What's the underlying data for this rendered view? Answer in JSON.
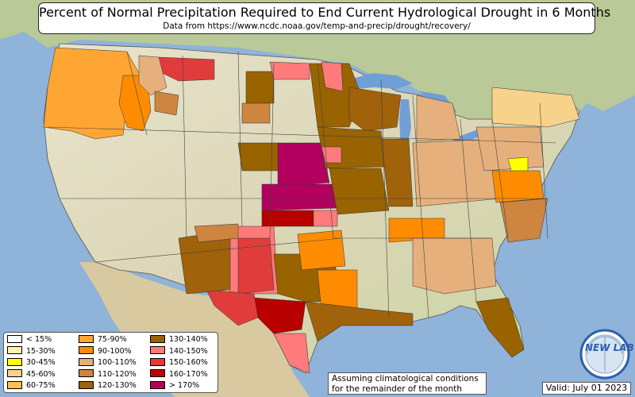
{
  "title": "Percent of Normal Precipitation Required to End Current Hydrological Drought in 6 Months",
  "subtitle": "Data from https://www.ncdc.noaa.gov/temp-and-precip/drought/recovery/",
  "legend": [
    {
      "label": "< 15%",
      "color": "#ffffff"
    },
    {
      "label": "15-30%",
      "color": "#fff2b0"
    },
    {
      "label": "30-45%",
      "color": "#ffff00"
    },
    {
      "label": "45-60%",
      "color": "#f7d28a"
    },
    {
      "label": "60-75%",
      "color": "#ffbf52"
    },
    {
      "label": "75-90%",
      "color": "#ffa533"
    },
    {
      "label": "90-100%",
      "color": "#ff8c00"
    },
    {
      "label": "100-110%",
      "color": "#e6b07c"
    },
    {
      "label": "110-120%",
      "color": "#cd853f"
    },
    {
      "label": "120-130%",
      "color": "#a0620a"
    },
    {
      "label": "130-140%",
      "color": "#996300"
    },
    {
      "label": "140-150%",
      "color": "#ff7a7a"
    },
    {
      "label": "150-160%",
      "color": "#e03c3c"
    },
    {
      "label": "160-170%",
      "color": "#b80000"
    },
    {
      "label": "> 170%",
      "color": "#b3005e"
    }
  ],
  "note": {
    "line1": "Assuming climatological conditions",
    "line2": "for the remainder of the month"
  },
  "valid": "Valid: July 01 2023",
  "logo_text": "NEW LAB",
  "colors": {
    "ocean": "#8fb3d9",
    "land": "#e8e2c8",
    "lake": "#6f9fd6",
    "border": "#333333"
  }
}
